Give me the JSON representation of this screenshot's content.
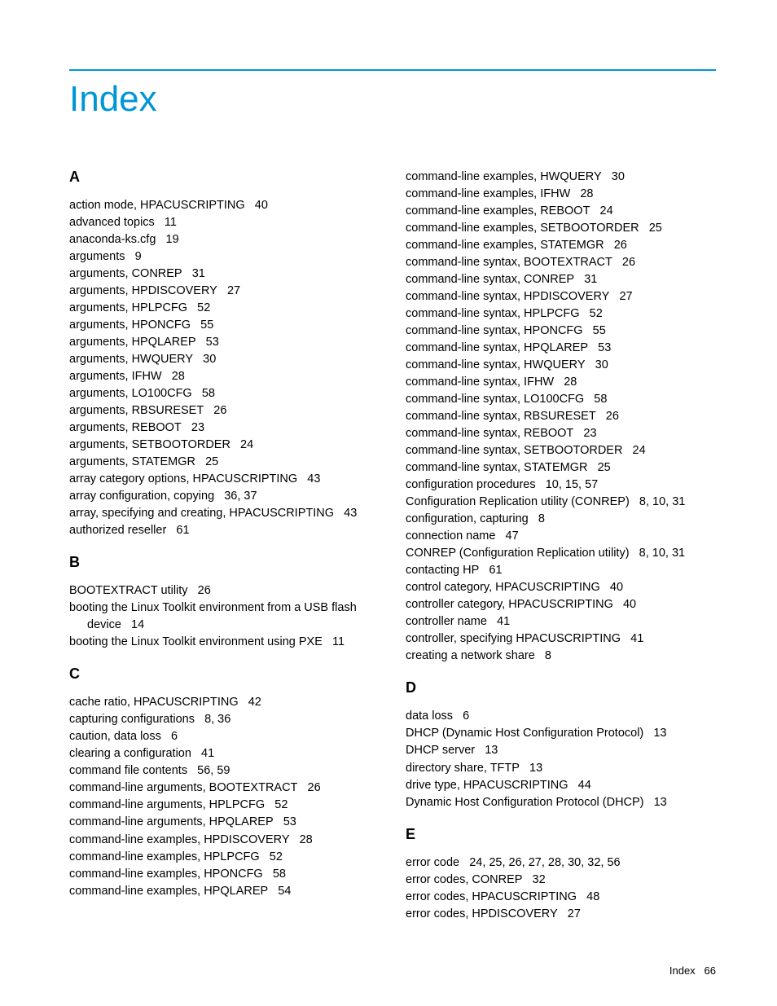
{
  "title": "Index",
  "footer": {
    "label": "Index",
    "page": "66"
  },
  "colors": {
    "accent": "#0096d6",
    "text": "#000000",
    "background": "#ffffff"
  },
  "leftColumn": [
    {
      "letter": "A",
      "entries": [
        {
          "term": "action mode, HPACUSCRIPTING",
          "pages": "40"
        },
        {
          "term": "advanced topics",
          "pages": "11"
        },
        {
          "term": "anaconda-ks.cfg",
          "pages": "19"
        },
        {
          "term": "arguments",
          "pages": "9"
        },
        {
          "term": "arguments, CONREP",
          "pages": "31"
        },
        {
          "term": "arguments, HPDISCOVERY",
          "pages": "27"
        },
        {
          "term": "arguments, HPLPCFG",
          "pages": "52"
        },
        {
          "term": "arguments, HPONCFG",
          "pages": "55"
        },
        {
          "term": "arguments, HPQLAREP",
          "pages": "53"
        },
        {
          "term": "arguments, HWQUERY",
          "pages": "30"
        },
        {
          "term": "arguments, IFHW",
          "pages": "28"
        },
        {
          "term": "arguments, LO100CFG",
          "pages": "58"
        },
        {
          "term": "arguments, RBSURESET",
          "pages": "26"
        },
        {
          "term": "arguments, REBOOT",
          "pages": "23"
        },
        {
          "term": "arguments, SETBOOTORDER",
          "pages": "24"
        },
        {
          "term": "arguments, STATEMGR",
          "pages": "25"
        },
        {
          "term": "array category options, HPACUSCRIPTING",
          "pages": "43"
        },
        {
          "term": "array configuration, copying",
          "pages": "36, 37"
        },
        {
          "term": "array, specifying and creating, HPACUSCRIPTING",
          "pages": "43"
        },
        {
          "term": "authorized reseller",
          "pages": "61"
        }
      ]
    },
    {
      "letter": "B",
      "entries": [
        {
          "term": "BOOTEXTRACT utility",
          "pages": "26"
        },
        {
          "term": "booting the Linux Toolkit environment from a USB flash device",
          "pages": "14"
        },
        {
          "term": "booting the Linux Toolkit environment using PXE",
          "pages": "11"
        }
      ]
    },
    {
      "letter": "C",
      "entries": [
        {
          "term": "cache ratio, HPACUSCRIPTING",
          "pages": "42"
        },
        {
          "term": "capturing configurations",
          "pages": "8, 36"
        },
        {
          "term": "caution, data loss",
          "pages": "6"
        },
        {
          "term": "clearing a configuration",
          "pages": "41"
        },
        {
          "term": "command file contents",
          "pages": "56, 59"
        },
        {
          "term": "command-line arguments, BOOTEXTRACT",
          "pages": "26"
        },
        {
          "term": "command-line arguments, HPLPCFG",
          "pages": "52"
        },
        {
          "term": "command-line arguments, HPQLAREP",
          "pages": "53"
        },
        {
          "term": "command-line examples, HPDISCOVERY",
          "pages": "28"
        },
        {
          "term": "command-line examples, HPLPCFG",
          "pages": "52"
        },
        {
          "term": "command-line examples, HPONCFG",
          "pages": "58"
        },
        {
          "term": "command-line examples, HPQLAREP",
          "pages": "54"
        }
      ]
    }
  ],
  "rightColumn": [
    {
      "letter": "",
      "entries": [
        {
          "term": "command-line examples, HWQUERY",
          "pages": "30"
        },
        {
          "term": "command-line examples, IFHW",
          "pages": "28"
        },
        {
          "term": "command-line examples, REBOOT",
          "pages": "24"
        },
        {
          "term": "command-line examples, SETBOOTORDER",
          "pages": "25"
        },
        {
          "term": "command-line examples, STATEMGR",
          "pages": "26"
        },
        {
          "term": "command-line syntax, BOOTEXTRACT",
          "pages": "26"
        },
        {
          "term": "command-line syntax, CONREP",
          "pages": "31"
        },
        {
          "term": "command-line syntax, HPDISCOVERY",
          "pages": "27"
        },
        {
          "term": "command-line syntax, HPLPCFG",
          "pages": "52"
        },
        {
          "term": "command-line syntax, HPONCFG",
          "pages": "55"
        },
        {
          "term": "command-line syntax, HPQLAREP",
          "pages": "53"
        },
        {
          "term": "command-line syntax, HWQUERY",
          "pages": "30"
        },
        {
          "term": "command-line syntax, IFHW",
          "pages": "28"
        },
        {
          "term": "command-line syntax, LO100CFG",
          "pages": "58"
        },
        {
          "term": "command-line syntax, RBSURESET",
          "pages": "26"
        },
        {
          "term": "command-line syntax, REBOOT",
          "pages": "23"
        },
        {
          "term": "command-line syntax, SETBOOTORDER",
          "pages": "24"
        },
        {
          "term": "command-line syntax, STATEMGR",
          "pages": "25"
        },
        {
          "term": "configuration procedures",
          "pages": "10, 15, 57"
        },
        {
          "term": "Configuration Replication utility (CONREP)",
          "pages": "8, 10, 31"
        },
        {
          "term": "configuration, capturing",
          "pages": "8"
        },
        {
          "term": "connection name",
          "pages": "47"
        },
        {
          "term": "CONREP (Configuration Replication utility)",
          "pages": "8, 10, 31"
        },
        {
          "term": "contacting HP",
          "pages": "61"
        },
        {
          "term": "control category, HPACUSCRIPTING",
          "pages": "40"
        },
        {
          "term": "controller category, HPACUSCRIPTING",
          "pages": "40"
        },
        {
          "term": "controller name",
          "pages": "41"
        },
        {
          "term": "controller, specifying HPACUSCRIPTING",
          "pages": "41"
        },
        {
          "term": "creating a network share",
          "pages": "8"
        }
      ]
    },
    {
      "letter": "D",
      "entries": [
        {
          "term": "data loss",
          "pages": "6"
        },
        {
          "term": "DHCP (Dynamic Host Configuration Protocol)",
          "pages": "13"
        },
        {
          "term": "DHCP server",
          "pages": "13"
        },
        {
          "term": "directory share, TFTP",
          "pages": "13"
        },
        {
          "term": "drive type, HPACUSCRIPTING",
          "pages": "44"
        },
        {
          "term": "Dynamic Host Configuration Protocol (DHCP)",
          "pages": "13"
        }
      ]
    },
    {
      "letter": "E",
      "entries": [
        {
          "term": "error code",
          "pages": "24, 25, 26, 27, 28, 30, 32, 56"
        },
        {
          "term": "error codes, CONREP",
          "pages": "32"
        },
        {
          "term": "error codes, HPACUSCRIPTING",
          "pages": "48"
        },
        {
          "term": "error codes, HPDISCOVERY",
          "pages": "27"
        }
      ]
    }
  ]
}
